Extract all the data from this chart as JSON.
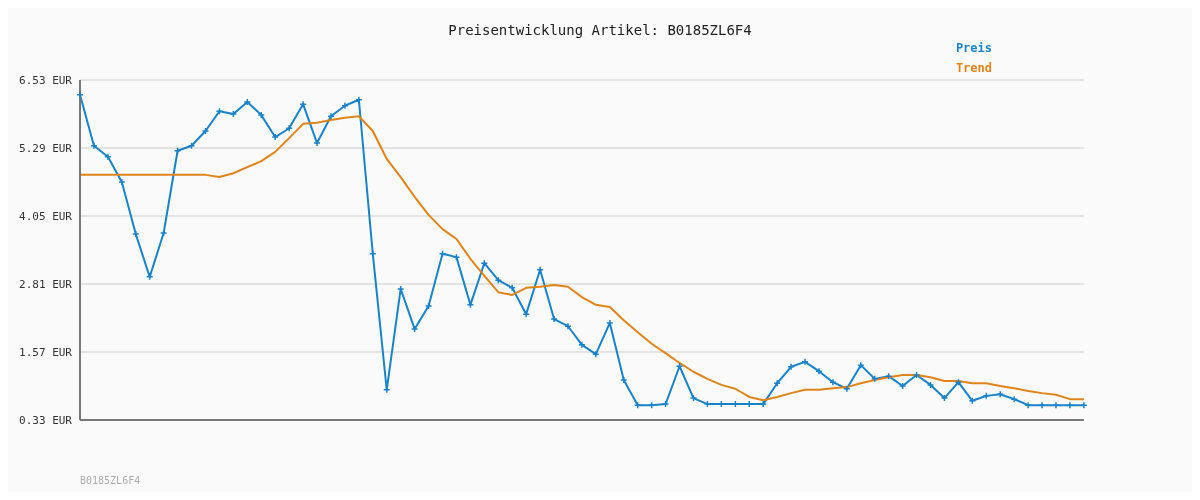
{
  "chart_data": {
    "type": "line",
    "title": "Preisentwicklung Artikel: B0185ZL6F4",
    "categories": [
      null,
      null,
      null,
      null,
      null,
      null,
      null,
      null,
      null,
      null,
      null,
      null,
      null,
      null,
      null,
      null,
      null,
      null,
      null,
      null,
      null,
      null,
      null,
      null,
      null,
      null,
      null,
      null,
      null,
      null,
      null,
      null,
      null,
      null,
      null,
      null,
      null,
      null,
      null,
      null,
      null,
      null,
      null,
      null,
      null,
      null,
      null,
      null,
      null,
      null,
      null,
      null,
      null,
      null,
      null,
      null,
      null,
      null,
      null,
      null,
      null,
      null,
      null,
      null,
      null,
      null,
      null,
      null,
      null,
      null,
      null,
      null,
      null
    ],
    "series": [
      {
        "name": "Preis",
        "color": "#1a82c8",
        "marker": "cross",
        "values": [
          6.26,
          5.33,
          5.13,
          4.67,
          3.72,
          2.94,
          3.74,
          5.24,
          5.33,
          5.6,
          5.96,
          5.91,
          6.13,
          5.89,
          5.49,
          5.65,
          6.09,
          5.38,
          5.87,
          6.06,
          6.17,
          3.36,
          0.88,
          2.72,
          1.99,
          2.41,
          3.36,
          3.3,
          2.43,
          3.19,
          2.88,
          2.74,
          2.26,
          3.07,
          2.17,
          2.04,
          1.7,
          1.53,
          2.1,
          1.06,
          0.6,
          0.6,
          0.62,
          1.31,
          0.73,
          0.62,
          0.62,
          0.62,
          0.62,
          0.62,
          1.0,
          1.3,
          1.39,
          1.22,
          1.02,
          0.9,
          1.33,
          1.08,
          1.13,
          0.95,
          1.15,
          0.97,
          0.73,
          1.02,
          0.68,
          0.77,
          0.8,
          0.71,
          0.6,
          0.6,
          0.6,
          0.6,
          0.6
        ]
      },
      {
        "name": "Trend",
        "color": "#e0841a",
        "marker": "none",
        "values": [
          4.8,
          4.8,
          4.8,
          4.8,
          4.8,
          4.8,
          4.8,
          4.8,
          4.8,
          4.8,
          4.76,
          4.83,
          4.94,
          5.05,
          5.22,
          5.47,
          5.73,
          5.75,
          5.8,
          5.84,
          5.87,
          5.6,
          5.09,
          4.76,
          4.4,
          4.07,
          3.81,
          3.63,
          3.27,
          2.96,
          2.66,
          2.61,
          2.74,
          2.76,
          2.79,
          2.76,
          2.57,
          2.43,
          2.39,
          2.15,
          1.93,
          1.72,
          1.55,
          1.37,
          1.21,
          1.08,
          0.97,
          0.9,
          0.75,
          0.69,
          0.75,
          0.82,
          0.88,
          0.88,
          0.91,
          0.93,
          1.0,
          1.06,
          1.11,
          1.15,
          1.15,
          1.11,
          1.04,
          1.04,
          1.0,
          1.0,
          0.95,
          0.91,
          0.86,
          0.82,
          0.79,
          0.71,
          0.71
        ]
      }
    ],
    "ylim": [
      0.33,
      6.53
    ],
    "yticks": [
      {
        "value": 0.33,
        "label": "0.33 EUR"
      },
      {
        "value": 1.57,
        "label": "1.57 EUR"
      },
      {
        "value": 2.81,
        "label": "2.81 EUR"
      },
      {
        "value": 4.05,
        "label": "4.05 EUR"
      },
      {
        "value": 5.29,
        "label": "5.29 EUR"
      },
      {
        "value": 6.53,
        "label": "6.53 EUR"
      }
    ],
    "grid": "y",
    "legend": "top right",
    "line_style": "solid",
    "annotations": [
      "B0185ZL6F4"
    ]
  }
}
